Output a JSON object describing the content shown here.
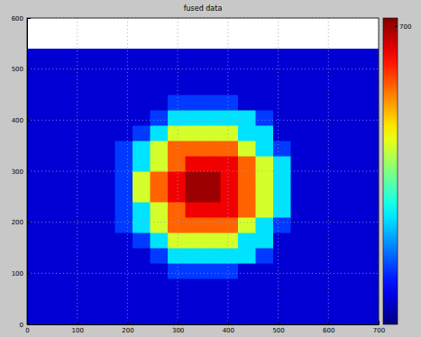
{
  "chart_data": {
    "type": "heatmap",
    "title": "fused data",
    "xlim": [
      0,
      700
    ],
    "ylim": [
      0,
      600
    ],
    "xticks": [
      0,
      100,
      200,
      300,
      400,
      500,
      600,
      700
    ],
    "yticks": [
      0,
      100,
      200,
      300,
      400,
      500,
      600
    ],
    "grid": true,
    "x_bins": [
      0,
      35,
      70,
      105,
      140,
      175,
      210,
      245,
      280,
      315,
      350,
      385,
      420,
      455,
      490,
      525,
      560,
      595,
      630,
      665,
      700
    ],
    "y_bins": [
      0,
      30,
      60,
      90,
      120,
      150,
      180,
      210,
      240,
      270,
      300,
      330,
      360,
      390,
      420,
      450,
      480,
      510,
      540
    ],
    "cells": [
      [
        60,
        60,
        60,
        60,
        60,
        60,
        60,
        60,
        60,
        60,
        60,
        60,
        60,
        60,
        60,
        60,
        60,
        60,
        60,
        60
      ],
      [
        60,
        60,
        60,
        60,
        60,
        60,
        60,
        60,
        60,
        60,
        60,
        60,
        60,
        60,
        60,
        60,
        60,
        60,
        60,
        60
      ],
      [
        60,
        60,
        60,
        60,
        60,
        60,
        60,
        60,
        60,
        60,
        60,
        60,
        60,
        60,
        60,
        60,
        60,
        60,
        60,
        60
      ],
      [
        60,
        60,
        60,
        60,
        60,
        60,
        60,
        60,
        130,
        130,
        130,
        130,
        60,
        60,
        60,
        60,
        60,
        60,
        60,
        60
      ],
      [
        60,
        60,
        60,
        60,
        60,
        60,
        60,
        130,
        250,
        250,
        250,
        250,
        250,
        130,
        60,
        60,
        60,
        60,
        60,
        60
      ],
      [
        60,
        60,
        60,
        60,
        60,
        60,
        130,
        250,
        420,
        420,
        420,
        420,
        250,
        250,
        60,
        60,
        60,
        60,
        60,
        60
      ],
      [
        60,
        60,
        60,
        60,
        60,
        130,
        250,
        420,
        560,
        560,
        560,
        560,
        420,
        250,
        130,
        60,
        60,
        60,
        60,
        60
      ],
      [
        60,
        60,
        60,
        60,
        60,
        130,
        250,
        420,
        560,
        640,
        640,
        640,
        560,
        420,
        250,
        60,
        60,
        60,
        60,
        60
      ],
      [
        60,
        60,
        60,
        60,
        60,
        130,
        420,
        560,
        640,
        700,
        700,
        640,
        560,
        420,
        250,
        60,
        60,
        60,
        60,
        60
      ],
      [
        60,
        60,
        60,
        60,
        60,
        130,
        420,
        560,
        640,
        700,
        700,
        640,
        560,
        420,
        250,
        60,
        60,
        60,
        60,
        60
      ],
      [
        60,
        60,
        60,
        60,
        60,
        130,
        250,
        420,
        560,
        640,
        640,
        640,
        560,
        420,
        250,
        60,
        60,
        60,
        60,
        60
      ],
      [
        60,
        60,
        60,
        60,
        60,
        130,
        250,
        420,
        560,
        560,
        560,
        560,
        420,
        250,
        130,
        60,
        60,
        60,
        60,
        60
      ],
      [
        60,
        60,
        60,
        60,
        60,
        60,
        130,
        250,
        420,
        420,
        420,
        420,
        250,
        250,
        60,
        60,
        60,
        60,
        60,
        60
      ],
      [
        60,
        60,
        60,
        60,
        60,
        60,
        60,
        130,
        250,
        250,
        250,
        250,
        250,
        130,
        60,
        60,
        60,
        60,
        60,
        60
      ],
      [
        60,
        60,
        60,
        60,
        60,
        60,
        60,
        60,
        130,
        130,
        130,
        130,
        60,
        60,
        60,
        60,
        60,
        60,
        60,
        60
      ],
      [
        60,
        60,
        60,
        60,
        60,
        60,
        60,
        60,
        60,
        60,
        60,
        60,
        60,
        60,
        60,
        60,
        60,
        60,
        60,
        60
      ],
      [
        60,
        60,
        60,
        60,
        60,
        60,
        60,
        60,
        60,
        60,
        60,
        60,
        60,
        60,
        60,
        60,
        60,
        60,
        60,
        60
      ],
      [
        60,
        60,
        60,
        60,
        60,
        60,
        60,
        60,
        60,
        60,
        60,
        60,
        60,
        60,
        60,
        60,
        60,
        60,
        60,
        60
      ]
    ],
    "colorbar": {
      "range": [
        0,
        720
      ],
      "ticks": [
        700
      ]
    }
  }
}
